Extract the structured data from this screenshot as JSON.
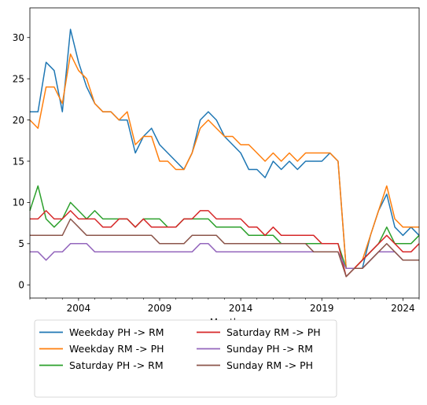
{
  "chart_data": {
    "type": "line",
    "xlabel": "Month",
    "ylabel": "",
    "title": "",
    "ylim": [
      -1.6,
      33.6
    ],
    "xlim": [
      "2001-01",
      "2025-01"
    ],
    "x_ticks": [
      2004,
      2009,
      2014,
      2019,
      2024
    ],
    "y_ticks": [
      0,
      5,
      10,
      15,
      20,
      25,
      30
    ],
    "grid": false,
    "legend_position": "below the chart, two columns",
    "series": [
      {
        "name": "Weekday PH -> RM",
        "color": "#1f77b4",
        "points": [
          [
            "2001-01",
            21
          ],
          [
            "2001-07",
            21
          ],
          [
            "2002-01",
            27
          ],
          [
            "2002-07",
            26
          ],
          [
            "2003-01",
            21
          ],
          [
            "2003-07",
            31
          ],
          [
            "2004-01",
            27
          ],
          [
            "2004-07",
            24
          ],
          [
            "2005-01",
            22
          ],
          [
            "2005-07",
            21
          ],
          [
            "2006-01",
            21
          ],
          [
            "2006-07",
            20
          ],
          [
            "2007-01",
            20
          ],
          [
            "2007-07",
            16
          ],
          [
            "2008-01",
            18
          ],
          [
            "2008-07",
            19
          ],
          [
            "2009-01",
            17
          ],
          [
            "2009-07",
            16
          ],
          [
            "2010-01",
            15
          ],
          [
            "2010-07",
            14
          ],
          [
            "2011-01",
            16
          ],
          [
            "2011-07",
            20
          ],
          [
            "2012-01",
            21
          ],
          [
            "2012-07",
            20
          ],
          [
            "2013-01",
            18
          ],
          [
            "2013-07",
            17
          ],
          [
            "2014-01",
            16
          ],
          [
            "2014-07",
            14
          ],
          [
            "2015-01",
            14
          ],
          [
            "2015-07",
            13
          ],
          [
            "2016-01",
            15
          ],
          [
            "2016-07",
            14
          ],
          [
            "2017-01",
            15
          ],
          [
            "2017-07",
            14
          ],
          [
            "2018-01",
            15
          ],
          [
            "2018-07",
            15
          ],
          [
            "2019-01",
            15
          ],
          [
            "2019-07",
            16
          ],
          [
            "2020-01",
            15
          ],
          [
            "2020-07",
            2
          ],
          [
            "2021-01",
            2
          ],
          [
            "2021-07",
            2
          ],
          [
            "2022-01",
            6
          ],
          [
            "2022-07",
            9
          ],
          [
            "2023-01",
            11
          ],
          [
            "2023-07",
            7
          ],
          [
            "2024-01",
            6
          ],
          [
            "2024-07",
            7
          ],
          [
            "2025-01",
            6
          ]
        ]
      },
      {
        "name": "Weekday RM -> PH",
        "color": "#ff7f0e",
        "points": [
          [
            "2001-01",
            20
          ],
          [
            "2001-07",
            19
          ],
          [
            "2002-01",
            24
          ],
          [
            "2002-07",
            24
          ],
          [
            "2003-01",
            22
          ],
          [
            "2003-07",
            28
          ],
          [
            "2004-01",
            26
          ],
          [
            "2004-07",
            25
          ],
          [
            "2005-01",
            22
          ],
          [
            "2005-07",
            21
          ],
          [
            "2006-01",
            21
          ],
          [
            "2006-07",
            20
          ],
          [
            "2007-01",
            21
          ],
          [
            "2007-07",
            17
          ],
          [
            "2008-01",
            18
          ],
          [
            "2008-07",
            18
          ],
          [
            "2009-01",
            15
          ],
          [
            "2009-07",
            15
          ],
          [
            "2010-01",
            14
          ],
          [
            "2010-07",
            14
          ],
          [
            "2011-01",
            16
          ],
          [
            "2011-07",
            19
          ],
          [
            "2012-01",
            20
          ],
          [
            "2012-07",
            19
          ],
          [
            "2013-01",
            18
          ],
          [
            "2013-07",
            18
          ],
          [
            "2014-01",
            17
          ],
          [
            "2014-07",
            17
          ],
          [
            "2015-01",
            16
          ],
          [
            "2015-07",
            15
          ],
          [
            "2016-01",
            16
          ],
          [
            "2016-07",
            15
          ],
          [
            "2017-01",
            16
          ],
          [
            "2017-07",
            15
          ],
          [
            "2018-01",
            16
          ],
          [
            "2018-07",
            16
          ],
          [
            "2019-01",
            16
          ],
          [
            "2019-07",
            16
          ],
          [
            "2020-01",
            15
          ],
          [
            "2020-07",
            2
          ],
          [
            "2021-01",
            2
          ],
          [
            "2021-07",
            3
          ],
          [
            "2022-01",
            6
          ],
          [
            "2022-07",
            9
          ],
          [
            "2023-01",
            12
          ],
          [
            "2023-07",
            8
          ],
          [
            "2024-01",
            7
          ],
          [
            "2024-07",
            7
          ],
          [
            "2025-01",
            7
          ]
        ]
      },
      {
        "name": "Saturday PH -> RM",
        "color": "#2ca02c",
        "points": [
          [
            "2001-01",
            9
          ],
          [
            "2001-07",
            12
          ],
          [
            "2002-01",
            8
          ],
          [
            "2002-07",
            7
          ],
          [
            "2003-01",
            8
          ],
          [
            "2003-07",
            10
          ],
          [
            "2004-01",
            9
          ],
          [
            "2004-07",
            8
          ],
          [
            "2005-01",
            9
          ],
          [
            "2005-07",
            8
          ],
          [
            "2006-01",
            8
          ],
          [
            "2006-07",
            8
          ],
          [
            "2007-01",
            8
          ],
          [
            "2007-07",
            7
          ],
          [
            "2008-01",
            8
          ],
          [
            "2008-07",
            8
          ],
          [
            "2009-01",
            8
          ],
          [
            "2009-07",
            7
          ],
          [
            "2010-01",
            7
          ],
          [
            "2010-07",
            8
          ],
          [
            "2011-01",
            8
          ],
          [
            "2011-07",
            8
          ],
          [
            "2012-01",
            8
          ],
          [
            "2012-07",
            7
          ],
          [
            "2013-01",
            7
          ],
          [
            "2013-07",
            7
          ],
          [
            "2014-01",
            7
          ],
          [
            "2014-07",
            6
          ],
          [
            "2015-01",
            6
          ],
          [
            "2015-07",
            6
          ],
          [
            "2016-01",
            6
          ],
          [
            "2016-07",
            5
          ],
          [
            "2017-01",
            5
          ],
          [
            "2017-07",
            5
          ],
          [
            "2018-01",
            5
          ],
          [
            "2018-07",
            5
          ],
          [
            "2019-01",
            5
          ],
          [
            "2019-07",
            5
          ],
          [
            "2020-01",
            5
          ],
          [
            "2020-07",
            2
          ],
          [
            "2021-01",
            2
          ],
          [
            "2021-07",
            3
          ],
          [
            "2022-01",
            4
          ],
          [
            "2022-07",
            5
          ],
          [
            "2023-01",
            7
          ],
          [
            "2023-07",
            5
          ],
          [
            "2024-01",
            5
          ],
          [
            "2024-07",
            5
          ],
          [
            "2025-01",
            6
          ]
        ]
      },
      {
        "name": "Saturday RM -> PH",
        "color": "#d62728",
        "points": [
          [
            "2001-01",
            8
          ],
          [
            "2001-07",
            8
          ],
          [
            "2002-01",
            9
          ],
          [
            "2002-07",
            8
          ],
          [
            "2003-01",
            8
          ],
          [
            "2003-07",
            9
          ],
          [
            "2004-01",
            8
          ],
          [
            "2004-07",
            8
          ],
          [
            "2005-01",
            8
          ],
          [
            "2005-07",
            7
          ],
          [
            "2006-01",
            7
          ],
          [
            "2006-07",
            8
          ],
          [
            "2007-01",
            8
          ],
          [
            "2007-07",
            7
          ],
          [
            "2008-01",
            8
          ],
          [
            "2008-07",
            7
          ],
          [
            "2009-01",
            7
          ],
          [
            "2009-07",
            7
          ],
          [
            "2010-01",
            7
          ],
          [
            "2010-07",
            8
          ],
          [
            "2011-01",
            8
          ],
          [
            "2011-07",
            9
          ],
          [
            "2012-01",
            9
          ],
          [
            "2012-07",
            8
          ],
          [
            "2013-01",
            8
          ],
          [
            "2013-07",
            8
          ],
          [
            "2014-01",
            8
          ],
          [
            "2014-07",
            7
          ],
          [
            "2015-01",
            7
          ],
          [
            "2015-07",
            6
          ],
          [
            "2016-01",
            7
          ],
          [
            "2016-07",
            6
          ],
          [
            "2017-01",
            6
          ],
          [
            "2017-07",
            6
          ],
          [
            "2018-01",
            6
          ],
          [
            "2018-07",
            6
          ],
          [
            "2019-01",
            5
          ],
          [
            "2019-07",
            5
          ],
          [
            "2020-01",
            5
          ],
          [
            "2020-07",
            1
          ],
          [
            "2021-01",
            2
          ],
          [
            "2021-07",
            3
          ],
          [
            "2022-01",
            4
          ],
          [
            "2022-07",
            5
          ],
          [
            "2023-01",
            6
          ],
          [
            "2023-07",
            5
          ],
          [
            "2024-01",
            4
          ],
          [
            "2024-07",
            4
          ],
          [
            "2025-01",
            5
          ]
        ]
      },
      {
        "name": "Sunday PH -> RM",
        "color": "#9467bd",
        "points": [
          [
            "2001-01",
            4
          ],
          [
            "2001-07",
            4
          ],
          [
            "2002-01",
            3
          ],
          [
            "2002-07",
            4
          ],
          [
            "2003-01",
            4
          ],
          [
            "2003-07",
            5
          ],
          [
            "2004-01",
            5
          ],
          [
            "2004-07",
            5
          ],
          [
            "2005-01",
            4
          ],
          [
            "2005-07",
            4
          ],
          [
            "2006-01",
            4
          ],
          [
            "2006-07",
            4
          ],
          [
            "2007-01",
            4
          ],
          [
            "2007-07",
            4
          ],
          [
            "2008-01",
            4
          ],
          [
            "2008-07",
            4
          ],
          [
            "2009-01",
            4
          ],
          [
            "2009-07",
            4
          ],
          [
            "2010-01",
            4
          ],
          [
            "2010-07",
            4
          ],
          [
            "2011-01",
            4
          ],
          [
            "2011-07",
            5
          ],
          [
            "2012-01",
            5
          ],
          [
            "2012-07",
            4
          ],
          [
            "2013-01",
            4
          ],
          [
            "2013-07",
            4
          ],
          [
            "2014-01",
            4
          ],
          [
            "2014-07",
            4
          ],
          [
            "2015-01",
            4
          ],
          [
            "2015-07",
            4
          ],
          [
            "2016-01",
            4
          ],
          [
            "2016-07",
            4
          ],
          [
            "2017-01",
            4
          ],
          [
            "2017-07",
            4
          ],
          [
            "2018-01",
            4
          ],
          [
            "2018-07",
            4
          ],
          [
            "2019-01",
            4
          ],
          [
            "2019-07",
            4
          ],
          [
            "2020-01",
            4
          ],
          [
            "2020-07",
            2
          ],
          [
            "2021-01",
            2
          ],
          [
            "2021-07",
            2
          ],
          [
            "2022-01",
            3
          ],
          [
            "2022-07",
            4
          ],
          [
            "2023-01",
            4
          ],
          [
            "2023-07",
            4
          ],
          [
            "2024-01",
            3
          ],
          [
            "2024-07",
            3
          ],
          [
            "2025-01",
            3
          ]
        ]
      },
      {
        "name": "Sunday RM -> PH",
        "color": "#8c564b",
        "points": [
          [
            "2001-01",
            6
          ],
          [
            "2001-07",
            6
          ],
          [
            "2002-01",
            6
          ],
          [
            "2002-07",
            6
          ],
          [
            "2003-01",
            6
          ],
          [
            "2003-07",
            8
          ],
          [
            "2004-01",
            7
          ],
          [
            "2004-07",
            6
          ],
          [
            "2005-01",
            6
          ],
          [
            "2005-07",
            6
          ],
          [
            "2006-01",
            6
          ],
          [
            "2006-07",
            6
          ],
          [
            "2007-01",
            6
          ],
          [
            "2007-07",
            6
          ],
          [
            "2008-01",
            6
          ],
          [
            "2008-07",
            6
          ],
          [
            "2009-01",
            5
          ],
          [
            "2009-07",
            5
          ],
          [
            "2010-01",
            5
          ],
          [
            "2010-07",
            5
          ],
          [
            "2011-01",
            6
          ],
          [
            "2011-07",
            6
          ],
          [
            "2012-01",
            6
          ],
          [
            "2012-07",
            6
          ],
          [
            "2013-01",
            5
          ],
          [
            "2013-07",
            5
          ],
          [
            "2014-01",
            5
          ],
          [
            "2014-07",
            5
          ],
          [
            "2015-01",
            5
          ],
          [
            "2015-07",
            5
          ],
          [
            "2016-01",
            5
          ],
          [
            "2016-07",
            5
          ],
          [
            "2017-01",
            5
          ],
          [
            "2017-07",
            5
          ],
          [
            "2018-01",
            5
          ],
          [
            "2018-07",
            4
          ],
          [
            "2019-01",
            4
          ],
          [
            "2019-07",
            4
          ],
          [
            "2020-01",
            4
          ],
          [
            "2020-07",
            1
          ],
          [
            "2021-01",
            2
          ],
          [
            "2021-07",
            2
          ],
          [
            "2022-01",
            3
          ],
          [
            "2022-07",
            4
          ],
          [
            "2023-01",
            5
          ],
          [
            "2023-07",
            4
          ],
          [
            "2024-01",
            3
          ],
          [
            "2024-07",
            3
          ],
          [
            "2025-01",
            3
          ]
        ]
      }
    ]
  }
}
